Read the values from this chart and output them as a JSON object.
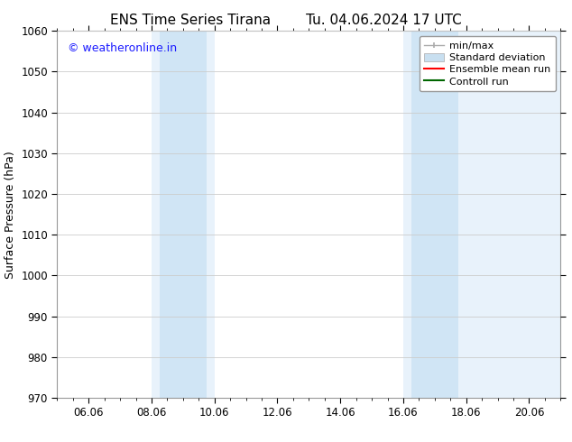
{
  "title_left": "ENS Time Series Tirana",
  "title_right": "Tu. 04.06.2024 17 UTC",
  "ylabel": "Surface Pressure (hPa)",
  "ylim": [
    970,
    1060
  ],
  "yticks": [
    970,
    980,
    990,
    1000,
    1010,
    1020,
    1030,
    1040,
    1050,
    1060
  ],
  "xtick_labels": [
    "06.06",
    "08.06",
    "10.06",
    "12.06",
    "14.06",
    "16.06",
    "18.06",
    "20.06"
  ],
  "xtick_positions": [
    1.0,
    3.0,
    5.0,
    7.0,
    9.0,
    11.0,
    13.0,
    15.0
  ],
  "xlim": [
    0.0,
    16.0
  ],
  "shaded_bands": [
    {
      "x_start": 3.0,
      "x_end": 5.0
    },
    {
      "x_start": 11.0,
      "x_end": 16.0
    }
  ],
  "shaded_color_light": "#e8f2fb",
  "shaded_color_dark": "#d0e5f5",
  "shaded_dark_bands": [
    {
      "x_start": 3.25,
      "x_end": 4.75
    },
    {
      "x_start": 11.25,
      "x_end": 12.75
    }
  ],
  "watermark_text": "© weatheronline.in",
  "watermark_color": "#1a1aff",
  "legend_items": [
    {
      "label": "min/max",
      "color": "#aaaaaa",
      "type": "minmax"
    },
    {
      "label": "Standard deviation",
      "color": "#c8dff0",
      "type": "patch"
    },
    {
      "label": "Ensemble mean run",
      "color": "#ff0000",
      "type": "line"
    },
    {
      "label": "Controll run",
      "color": "#006600",
      "type": "line"
    }
  ],
  "bg_color": "#ffffff",
  "plot_bg": "#ffffff",
  "grid_color": "#cccccc",
  "title_fontsize": 11,
  "axis_label_fontsize": 9,
  "tick_fontsize": 8.5,
  "watermark_fontsize": 9,
  "legend_fontsize": 8
}
